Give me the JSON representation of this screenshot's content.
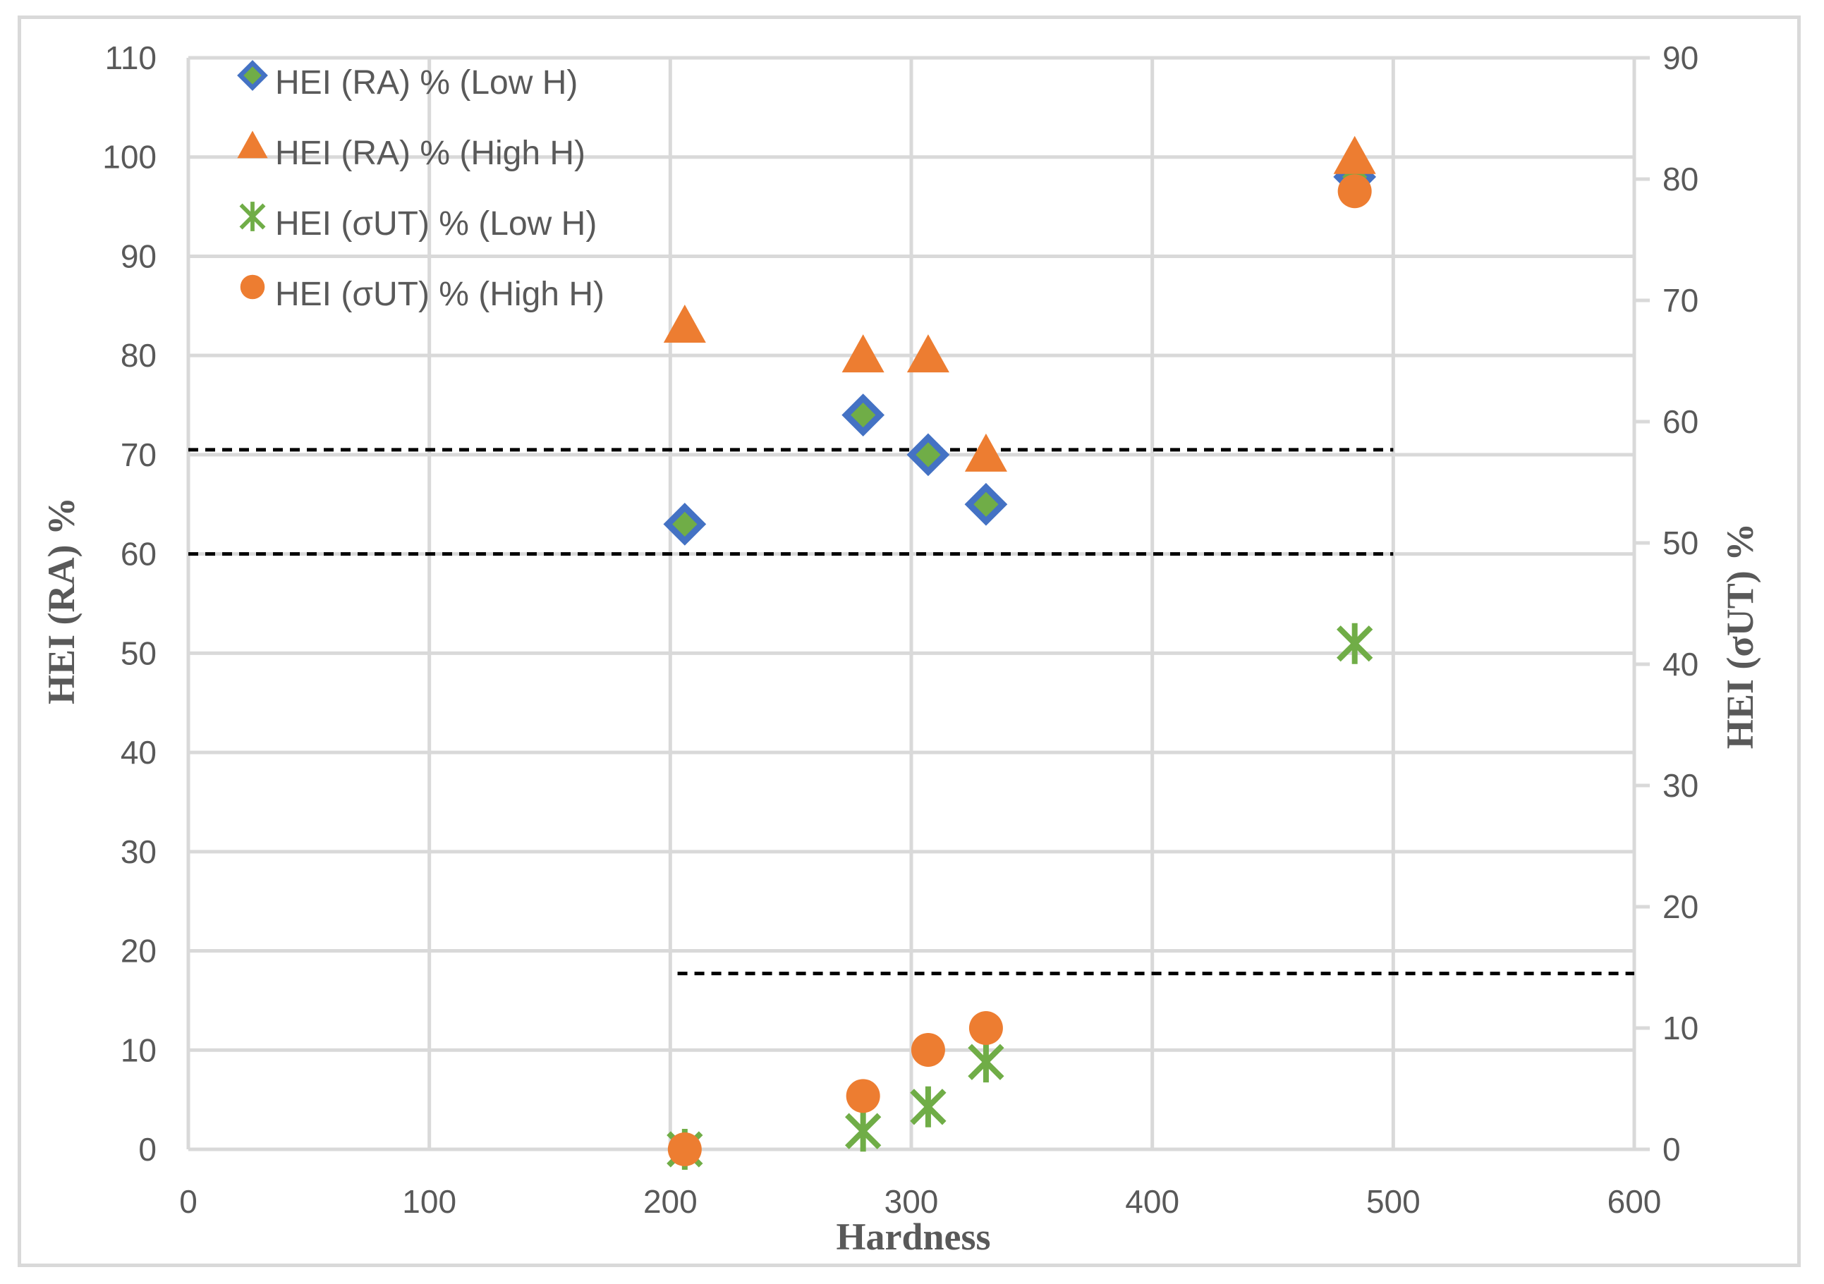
{
  "chart_data": {
    "type": "scatter",
    "xlabel": "Hardness",
    "ylabel": "HEI (RA) %",
    "y2label": "HEI (σUT) %",
    "xlim": [
      0,
      600
    ],
    "ylim": [
      0,
      110
    ],
    "y2lim": [
      0,
      90
    ],
    "x_ticks": [
      "0",
      "100",
      "200",
      "300",
      "400",
      "500",
      "600"
    ],
    "y_ticks": [
      "0",
      "10",
      "20",
      "30",
      "40",
      "50",
      "60",
      "70",
      "80",
      "90",
      "100",
      "110"
    ],
    "y2_ticks": [
      "0",
      "10",
      "20",
      "30",
      "40",
      "50",
      "60",
      "70",
      "80",
      "90"
    ],
    "grid": true,
    "legend_position": "top-left",
    "series": [
      {
        "name": "HEI (RA) % (Low H)",
        "axis": "left",
        "marker": "diamond",
        "color": "#4472c4",
        "fill": "#70ad47",
        "points": [
          [
            206,
            63
          ],
          [
            280,
            74
          ],
          [
            307,
            70
          ],
          [
            331,
            65
          ],
          [
            484,
            98
          ]
        ]
      },
      {
        "name": "HEI (RA) % (High H)",
        "axis": "left",
        "marker": "triangle",
        "color": "#ed7d31",
        "points": [
          [
            206,
            83
          ],
          [
            280,
            80
          ],
          [
            307,
            80
          ],
          [
            331,
            70
          ],
          [
            484,
            100
          ]
        ]
      },
      {
        "name": "HEI (σUT) % (Low H)",
        "axis": "right",
        "marker": "star",
        "color": "#70ad47",
        "points": [
          [
            206,
            0
          ],
          [
            280,
            1.5
          ],
          [
            307,
            3.5
          ],
          [
            331,
            7.2
          ],
          [
            484,
            41.7
          ]
        ]
      },
      {
        "name": "HEI (σUT) % (High H)",
        "axis": "right",
        "marker": "circle",
        "color": "#ed7d31",
        "points": [
          [
            206,
            0
          ],
          [
            280,
            4.4
          ],
          [
            307,
            8.2
          ],
          [
            331,
            10
          ],
          [
            484,
            79
          ]
        ]
      }
    ],
    "reference_lines": [
      {
        "axis": "left",
        "y": 70.5,
        "x_range": [
          0,
          500
        ],
        "style": "dashed",
        "color": "#000000"
      },
      {
        "axis": "left",
        "y": 60,
        "x_range": [
          0,
          500
        ],
        "style": "dashed",
        "color": "#000000"
      },
      {
        "axis": "right",
        "y": 14.5,
        "x_range": [
          203,
          600
        ],
        "style": "dashed",
        "color": "#000000"
      }
    ]
  }
}
